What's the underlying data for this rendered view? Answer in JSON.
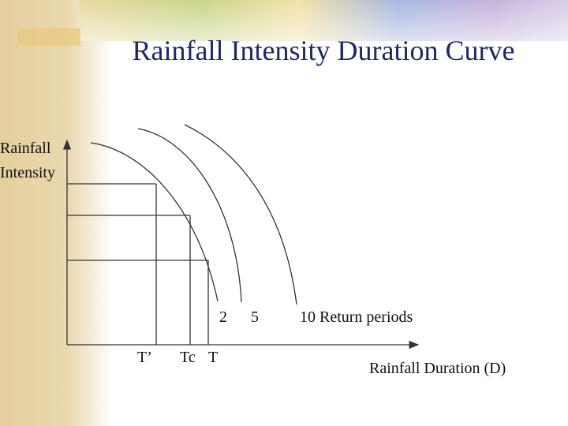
{
  "title": "Rainfall Intensity Duration Curve",
  "y_axis_label": [
    "Rainfall",
    "Intensity"
  ],
  "curve_labels": [
    "2",
    "5",
    "10 Return periods"
  ],
  "x_labels": [
    "T’",
    "Tc",
    "T"
  ],
  "x_axis_label": "Rainfall Duration (D)"
}
